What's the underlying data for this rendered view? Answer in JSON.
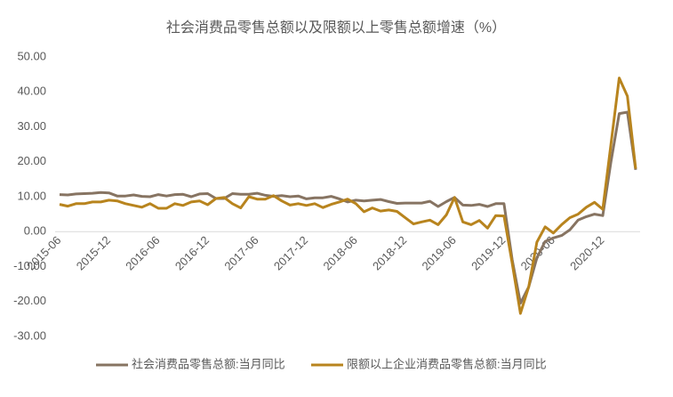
{
  "chart_data": {
    "type": "line",
    "title": "社会消费品零售总额以及限额以上零售总额增速（%）",
    "categories": [
      "2015-06",
      null,
      null,
      null,
      null,
      null,
      "2015-12",
      null,
      null,
      null,
      null,
      null,
      "2016-06",
      null,
      null,
      null,
      null,
      null,
      "2016-12",
      null,
      null,
      null,
      null,
      null,
      "2017-06",
      null,
      null,
      null,
      null,
      null,
      "2017-12",
      null,
      null,
      null,
      null,
      null,
      "2018-06",
      null,
      null,
      null,
      null,
      null,
      "2018-12",
      null,
      null,
      null,
      null,
      null,
      "2019-06",
      null,
      null,
      null,
      null,
      null,
      "2019-12",
      null,
      null,
      null,
      null,
      null,
      "2020-06",
      null,
      null,
      null,
      null,
      null,
      "2020-12",
      null,
      null,
      null,
      null
    ],
    "series": [
      {
        "name": "社会消费品零售总额:当月同比",
        "color": "#877462",
        "values": [
          10.6,
          10.5,
          10.8,
          10.9,
          11.0,
          11.2,
          11.1,
          10.2,
          10.2,
          10.5,
          10.1,
          10.0,
          10.6,
          10.2,
          10.6,
          10.7,
          10.0,
          10.8,
          10.9,
          9.5,
          9.5,
          10.9,
          10.7,
          10.7,
          11.0,
          10.4,
          10.1,
          10.3,
          10.0,
          10.2,
          9.4,
          9.7,
          9.7,
          10.1,
          9.4,
          8.5,
          9.0,
          8.8,
          9.0,
          9.2,
          8.6,
          8.1,
          8.2,
          8.2,
          8.2,
          8.7,
          7.2,
          8.6,
          9.8,
          7.6,
          7.5,
          7.8,
          7.2,
          8.0,
          8.0,
          -8.0,
          -20.5,
          -15.8,
          -7.5,
          -2.8,
          -1.8,
          -1.1,
          0.5,
          3.3,
          4.3,
          5.0,
          4.6,
          20.0,
          33.8,
          34.2,
          17.7
        ]
      },
      {
        "name": "限额以上企业消费品零售总额:当月同比",
        "color": "#B8841E",
        "values": [
          7.8,
          7.3,
          8.0,
          8.0,
          8.5,
          8.5,
          9.0,
          8.8,
          8.0,
          7.5,
          7.0,
          8.0,
          6.7,
          6.7,
          8.0,
          7.5,
          8.5,
          8.8,
          7.7,
          9.5,
          9.8,
          8.0,
          6.8,
          10.0,
          9.3,
          9.3,
          10.3,
          8.8,
          7.6,
          8.0,
          7.5,
          8.0,
          6.9,
          7.8,
          8.5,
          9.3,
          8.0,
          5.7,
          6.8,
          5.9,
          6.2,
          5.8,
          4.0,
          2.2,
          2.8,
          3.3,
          2.0,
          4.8,
          9.8,
          2.8,
          2.0,
          3.2,
          1.0,
          4.6,
          4.5,
          -9.0,
          -23.4,
          -15.8,
          -3.0,
          1.4,
          -0.4,
          2.0,
          4.0,
          5.0,
          7.0,
          8.4,
          6.4,
          25.0,
          44.0,
          38.8,
          18.0
        ]
      }
    ],
    "ylim": [
      -30,
      50
    ],
    "yticks": [
      {
        "value": -30,
        "label": "-30.00"
      },
      {
        "value": -20,
        "label": "-20.00"
      },
      {
        "value": -10,
        "label": "-10.00"
      },
      {
        "value": 0,
        "label": "0.00"
      },
      {
        "value": 10,
        "label": "10.00"
      },
      {
        "value": 20,
        "label": "20.00"
      },
      {
        "value": 30,
        "label": "30.00"
      },
      {
        "value": 40,
        "label": "40.00"
      },
      {
        "value": 50,
        "label": "50.00"
      }
    ],
    "legend": "bottom"
  }
}
